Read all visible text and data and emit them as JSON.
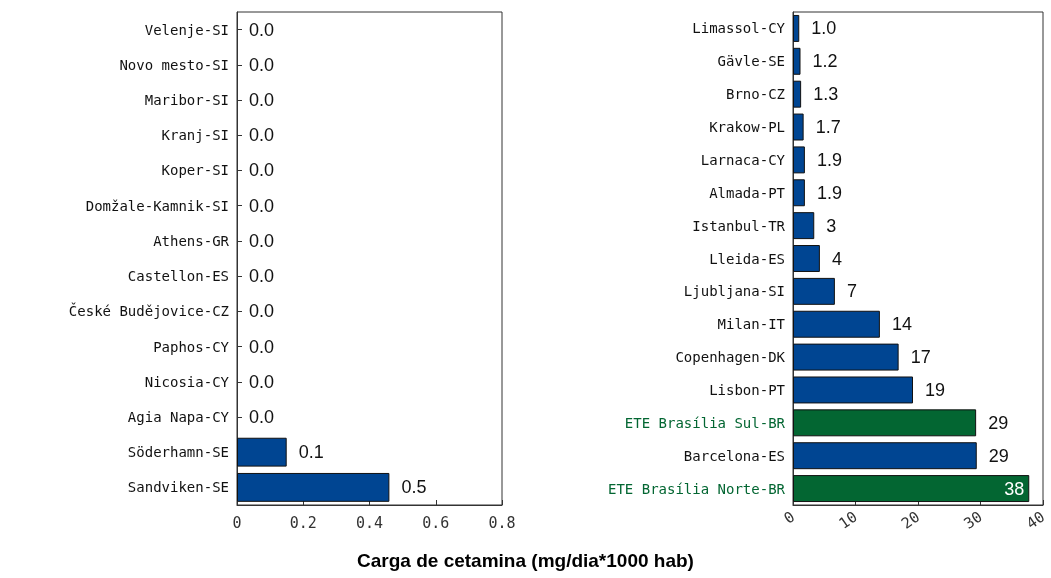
{
  "chart_data": [
    {
      "type": "bar",
      "orientation": "horizontal",
      "xlabel": "Carga de cetamina (mg/dia*1000 hab)",
      "categories": [
        "Velenje-SI",
        "Novo mesto-SI",
        "Maribor-SI",
        "Kranj-SI",
        "Koper-SI",
        "Domžale-Kamnik-SI",
        "Athens-GR",
        "Castellon-ES",
        "České Budějovice-CZ",
        "Paphos-CY",
        "Nicosia-CY",
        "Agia Napa-CY",
        "Söderhamn-SE",
        "Sandviken-SE"
      ],
      "values": [
        0,
        0,
        0,
        0,
        0,
        0,
        0,
        0,
        0,
        0,
        0,
        0,
        0.15,
        0.46
      ],
      "value_labels": [
        "0.0",
        "0.0",
        "0.0",
        "0.0",
        "0.0",
        "0.0",
        "0.0",
        "0.0",
        "0.0",
        "0.0",
        "0.0",
        "0.0",
        "0.1",
        "0.5"
      ],
      "colors": [
        "#004592",
        "#004592",
        "#004592",
        "#004592",
        "#004592",
        "#004592",
        "#004592",
        "#004592",
        "#004592",
        "#004592",
        "#004592",
        "#004592",
        "#004592",
        "#004592"
      ],
      "xlim": [
        0,
        0.8
      ],
      "xticks": [
        0,
        0.2,
        0.4,
        0.6,
        0.8
      ],
      "grid": false
    },
    {
      "type": "bar",
      "orientation": "horizontal",
      "categories": [
        "Limassol-CY",
        "Gävle-SE",
        "Brno-CZ",
        "Krakow-PL",
        "Larnaca-CY",
        "Almada-PT",
        "Istanbul-TR",
        "Lleida-ES",
        "Ljubljana-SI",
        "Milan-IT",
        "Copenhagen-DK",
        "Lisbon-PT",
        "ETE Brasília Sul-BR",
        "Barcelona-ES",
        "ETE Brasília Norte-BR"
      ],
      "values": [
        1.0,
        1.2,
        1.3,
        1.7,
        1.9,
        1.9,
        3.4,
        4.3,
        6.7,
        13.9,
        16.9,
        19.2,
        29.3,
        29.4,
        37.8
      ],
      "value_labels": [
        "1.0",
        "1.2",
        "1.3",
        "1.7",
        "1.9",
        "1.9",
        "3",
        "4",
        "7",
        "14",
        "17",
        "19",
        "29",
        "29",
        "38"
      ],
      "colors": [
        "#004592",
        "#004592",
        "#004592",
        "#004592",
        "#004592",
        "#004592",
        "#004592",
        "#004592",
        "#004592",
        "#004592",
        "#004592",
        "#004592",
        "#036632",
        "#004592",
        "#036632"
      ],
      "xlim": [
        0,
        40
      ],
      "xticks": [
        0,
        10,
        20,
        30,
        40
      ],
      "grid": false
    }
  ]
}
